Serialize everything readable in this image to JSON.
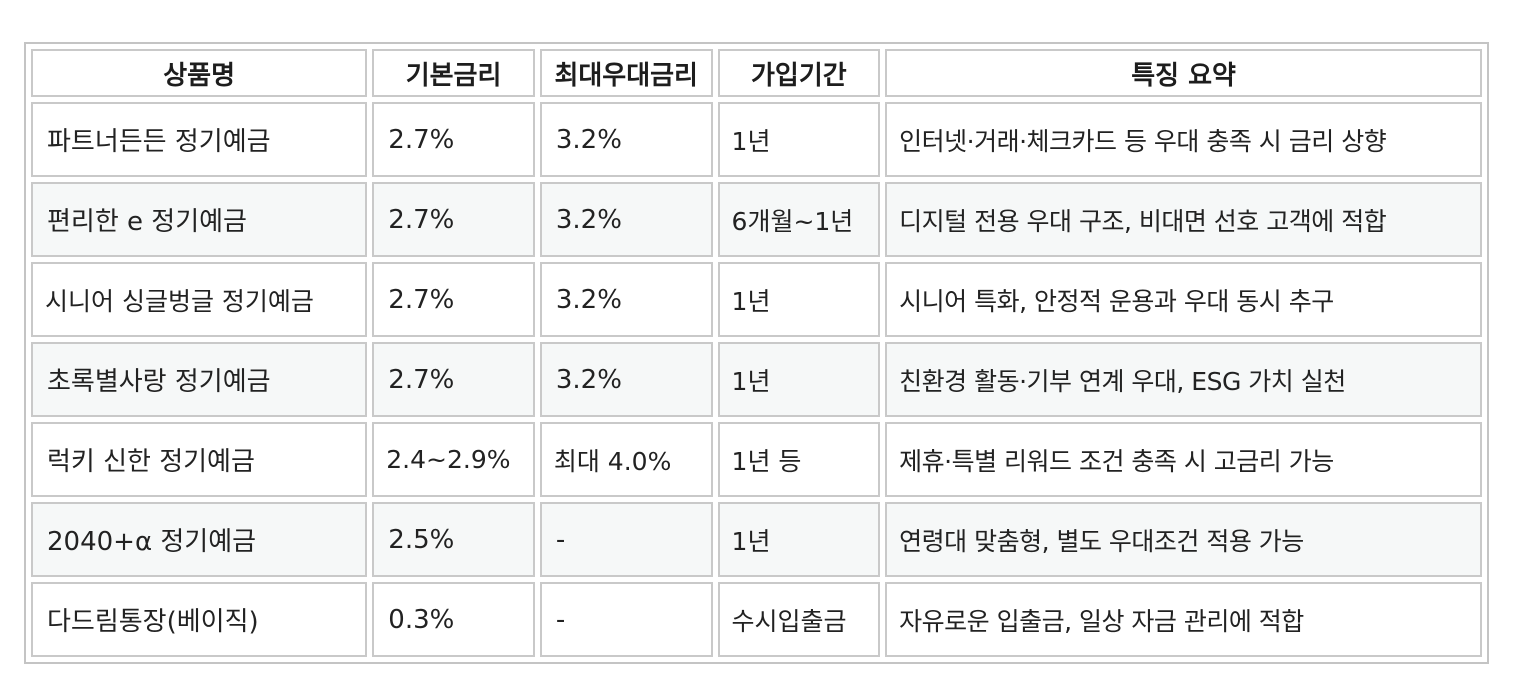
{
  "table": {
    "headers": [
      "상품명",
      "기본금리",
      "최대우대금리",
      "가입기간",
      "특징 요약"
    ],
    "rows": [
      [
        "파트너든든 정기예금",
        "2.7%",
        "3.2%",
        "1년",
        "인터넷·거래·체크카드 등 우대 충족 시 금리 상향"
      ],
      [
        "편리한 e 정기예금",
        "2.7%",
        "3.2%",
        "6개월~1년",
        "디지털 전용 우대 구조, 비대면 선호 고객에 적합"
      ],
      [
        "시니어 싱글벙글 정기예금",
        "2.7%",
        "3.2%",
        "1년",
        "시니어 특화, 안정적 운용과 우대 동시 추구"
      ],
      [
        "초록별사랑 정기예금",
        "2.7%",
        "3.2%",
        "1년",
        "친환경 활동·기부 연계 우대, ESG 가치 실천"
      ],
      [
        "럭키 신한 정기예금",
        "2.4~2.9%",
        "최대 4.0%",
        "1년 등",
        "제휴·특별 리워드 조건 충족 시 고금리 가능"
      ],
      [
        "2040+α 정기예금",
        "2.5%",
        "-",
        "1년",
        "연령대 맞춤형, 별도 우대조건 적용 가능"
      ],
      [
        "다드림통장(베이직)",
        "0.3%",
        "-",
        "수시입출금",
        "자유로운 입출금, 일상 자금 관리에 적합"
      ]
    ]
  }
}
